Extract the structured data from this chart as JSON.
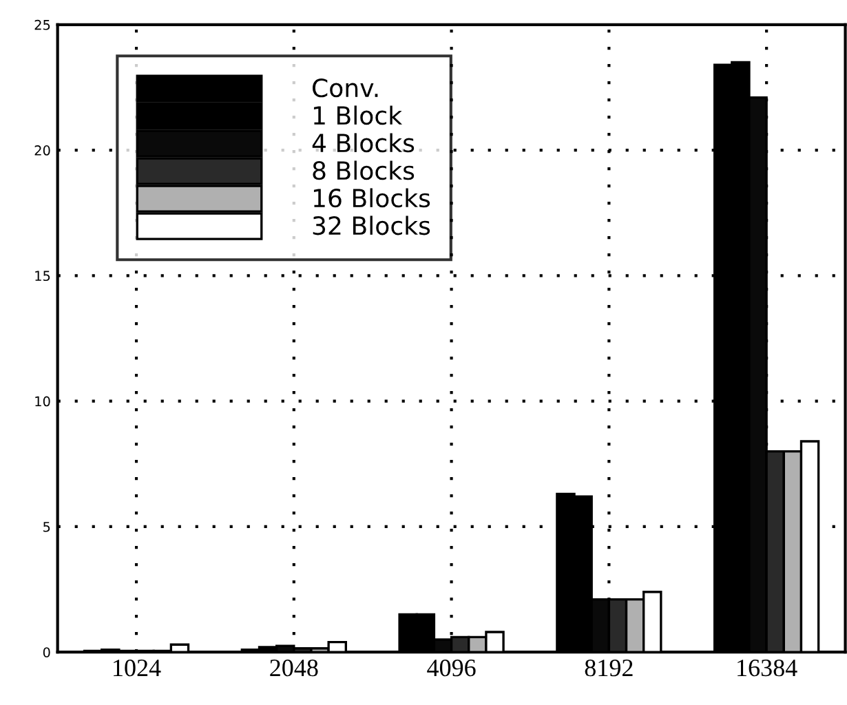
{
  "chart_data": {
    "type": "bar",
    "categories": [
      "1024",
      "2048",
      "4096",
      "8192",
      "16384"
    ],
    "series": [
      {
        "name": "Conv.",
        "color": "#000000",
        "values": [
          0.05,
          0.1,
          1.5,
          6.3,
          23.4
        ]
      },
      {
        "name": "1 Block",
        "color": "#000000",
        "values": [
          0.1,
          0.2,
          1.5,
          6.2,
          23.5
        ]
      },
      {
        "name": "4 Blocks",
        "color": "#0a0a0a",
        "values": [
          0.05,
          0.25,
          0.5,
          2.1,
          22.1
        ]
      },
      {
        "name": "8 Blocks",
        "color": "#2a2a2a",
        "values": [
          0.05,
          0.15,
          0.6,
          2.1,
          8.0
        ]
      },
      {
        "name": "16 Blocks",
        "color": "#b0b0b0",
        "values": [
          0.05,
          0.15,
          0.6,
          2.1,
          8.0
        ]
      },
      {
        "name": "32 Blocks",
        "color": "#ffffff",
        "values": [
          0.3,
          0.4,
          0.8,
          2.4,
          8.4
        ]
      }
    ],
    "ylim": [
      0,
      25
    ],
    "yticks": [
      0,
      5,
      10,
      15,
      20,
      25
    ],
    "grid": true,
    "legend": "top left"
  }
}
